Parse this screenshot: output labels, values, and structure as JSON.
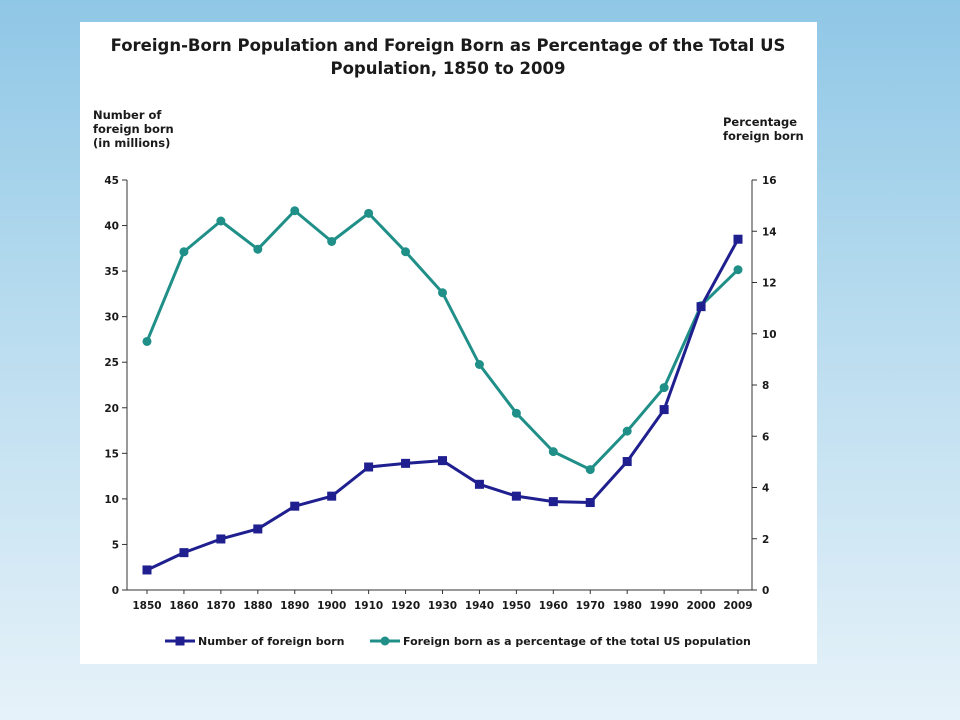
{
  "chart_data": {
    "type": "line",
    "title_lines": [
      "Foreign-Born Population and Foreign Born as Percentage of the Total US",
      "Population, 1850 to 2009"
    ],
    "ylabel_left_lines": [
      "Number of",
      "foreign born",
      "(in millions)"
    ],
    "ylabel_right_lines": [
      "Percentage",
      "foreign born"
    ],
    "categories": [
      "1850",
      "1860",
      "1870",
      "1880",
      "1890",
      "1900",
      "1910",
      "1920",
      "1930",
      "1940",
      "1950",
      "1960",
      "1970",
      "1980",
      "1990",
      "2000",
      "2009"
    ],
    "y_left_ticks": [
      "0",
      "5",
      "10",
      "15",
      "20",
      "25",
      "30",
      "35",
      "40",
      "45"
    ],
    "y_right_ticks": [
      "0",
      "2",
      "4",
      "6",
      "8",
      "10",
      "12",
      "14",
      "16"
    ],
    "ylim_left": [
      0,
      45
    ],
    "ylim_right": [
      0,
      16
    ],
    "grid": false,
    "legend_position": "bottom",
    "series": [
      {
        "name": "Number of foreign born",
        "axis": "left",
        "color": "#1f1f8f",
        "marker": "square",
        "values": [
          2.2,
          4.1,
          5.6,
          6.7,
          9.2,
          10.3,
          13.5,
          13.9,
          14.2,
          11.6,
          10.3,
          9.7,
          9.6,
          14.1,
          19.8,
          31.1,
          38.5
        ]
      },
      {
        "name": "Foreign born as a percentage of the total US population",
        "axis": "right",
        "color": "#1f8f88",
        "marker": "circle",
        "values": [
          9.7,
          13.2,
          14.4,
          13.3,
          14.8,
          13.6,
          14.7,
          13.2,
          11.6,
          8.8,
          6.9,
          5.4,
          4.7,
          6.2,
          7.9,
          11.1,
          12.5
        ]
      }
    ]
  }
}
